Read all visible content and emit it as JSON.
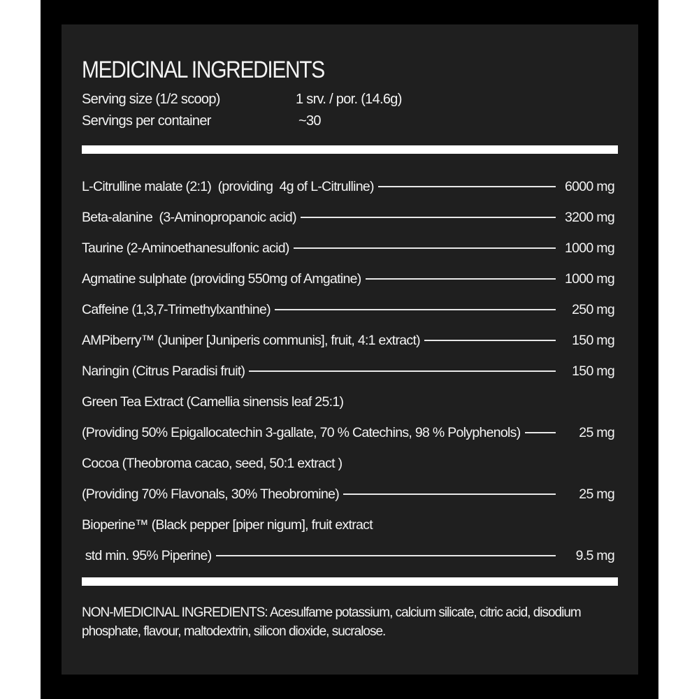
{
  "title": "MEDICINAL INGREDIENTS",
  "serving": {
    "size_label": "Serving size (1/2 scoop)",
    "size_value": "1 srv. / por. (14.6g)",
    "per_container_label": "Servings per container",
    "per_container_value": "~30"
  },
  "ingredients": [
    {
      "text": "L-Citrulline malate (2:1)  (providing  4g of L-Citrulline)",
      "amount": "6000 mg"
    },
    {
      "text": "Beta-alanine  (3-Aminopropanoic acid)",
      "amount": "3200 mg"
    },
    {
      "text": "Taurine (2-Aminoethanesulfonic acid)",
      "amount": "1000 mg"
    },
    {
      "text": "Agmatine sulphate (providing 550mg of Amgatine)",
      "amount": "1000 mg"
    },
    {
      "text": "Caffeine (1,3,7-Trimethylxanthine)",
      "amount": "250 mg"
    },
    {
      "text": "AMPiberry™ (Juniper [Juniperis communis], fruit, 4:1 extract)",
      "amount": "150 mg"
    },
    {
      "text": "Naringin (Citrus Paradisi fruit)",
      "amount": "150 mg"
    },
    {
      "text": "Green Tea Extract (Camellia sinensis leaf 25:1)",
      "amount": ""
    },
    {
      "text": "(Providing 50% Epigallocatechin 3-gallate, 70 % Catechins, 98 % Polyphenols)",
      "amount": "25 mg"
    },
    {
      "text": "Cocoa (Theobroma cacao, seed, 50:1 extract )",
      "amount": ""
    },
    {
      "text": "(Providing 70% Flavonals, 30% Theobromine)",
      "amount": "25 mg"
    },
    {
      "text": "Bioperine™ (Black pepper [piper nigum], fruit extract",
      "amount": ""
    },
    {
      "text": " std min. 95% Piperine)",
      "amount": "9.5 mg"
    }
  ],
  "non_medicinal": "NON-MEDICINAL INGREDIENTS: Acesulfame potassium, calcium silicate, citric acid, disodium phosphate, flavour, maltodextrin,  silicon dioxide, sucralose.",
  "colors": {
    "panel": "#1f1f1f",
    "frame": "#000000",
    "text": "#f4f4f4"
  }
}
